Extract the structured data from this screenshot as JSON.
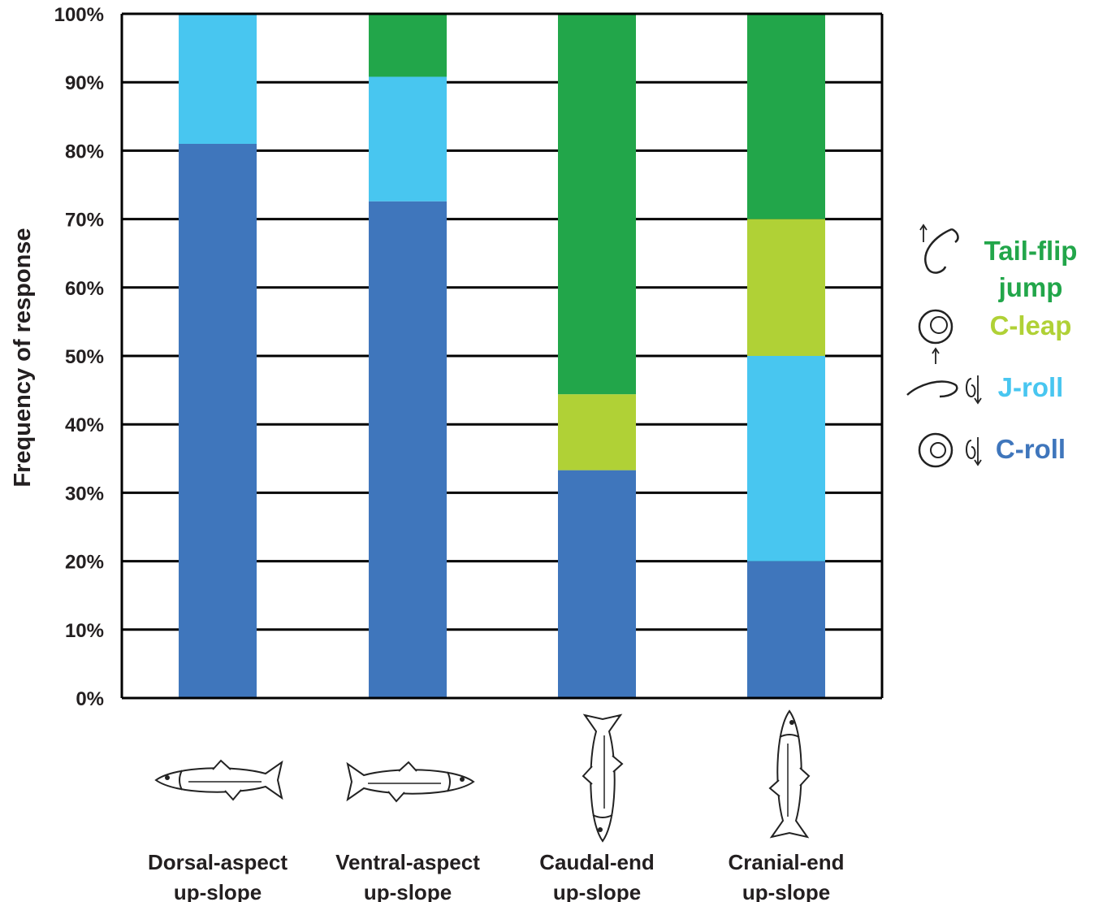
{
  "chart_data": {
    "type": "bar",
    "stacked": true,
    "ylabel": "Frequency of response",
    "ylim": [
      0,
      100
    ],
    "yticks": [
      "0%",
      "10%",
      "20%",
      "30%",
      "40%",
      "50%",
      "60%",
      "70%",
      "80%",
      "90%",
      "100%"
    ],
    "grid": true,
    "legend_position": "right",
    "categories": [
      [
        "Dorsal-aspect",
        "up-slope"
      ],
      [
        "Ventral-aspect",
        "up-slope"
      ],
      [
        "Caudal-end",
        "up-slope"
      ],
      [
        "Cranial-end",
        "up-slope"
      ]
    ],
    "category_icons": [
      "fish-side-icon",
      "fish-side-flipped-icon",
      "fish-head-down-icon",
      "fish-head-up-icon"
    ],
    "series": [
      {
        "name": "C-roll",
        "color": "#3f76bc",
        "icon": "c-roll-icon",
        "values": [
          81,
          72.6,
          33.3,
          20
        ]
      },
      {
        "name": "J-roll",
        "color": "#48c6f0",
        "icon": "j-roll-icon",
        "values": [
          19,
          18.2,
          0,
          30
        ]
      },
      {
        "name": "C-leap",
        "color": "#b0d136",
        "icon": "c-leap-icon",
        "values": [
          0,
          0,
          11.1,
          20
        ]
      },
      {
        "name": "Tail-flip jump",
        "label_lines": [
          "Tail-flip",
          "jump"
        ],
        "color": "#22a64a",
        "icon": "tail-flip-jump-icon",
        "values": [
          0,
          9.2,
          55.6,
          30
        ]
      }
    ]
  }
}
